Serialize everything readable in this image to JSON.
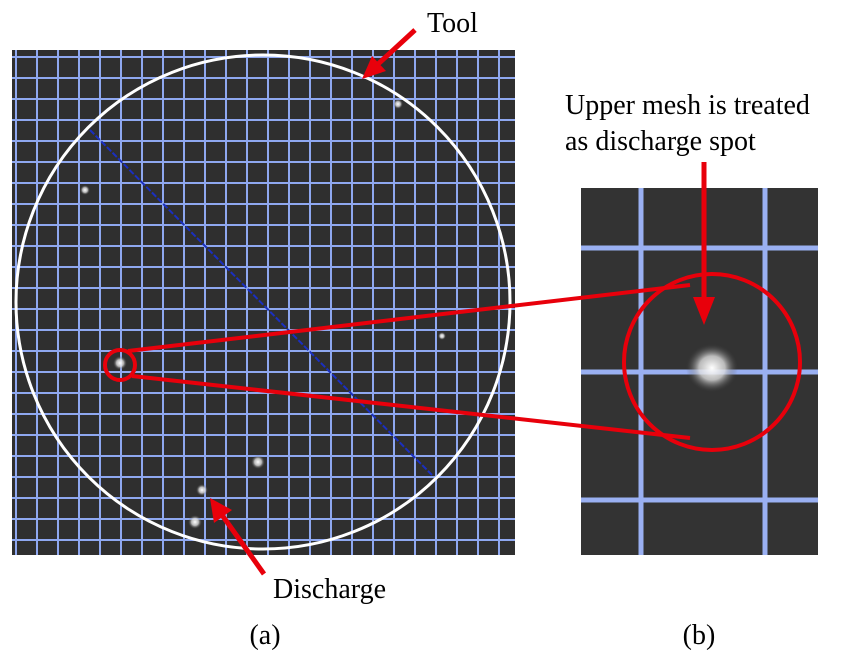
{
  "labels": {
    "tool": "Tool",
    "upper_mesh": [
      "Upper mesh is treated",
      "as discharge spot"
    ],
    "discharge": "Discharge"
  },
  "captions": {
    "a": "(a)",
    "b": "(b)"
  }
}
